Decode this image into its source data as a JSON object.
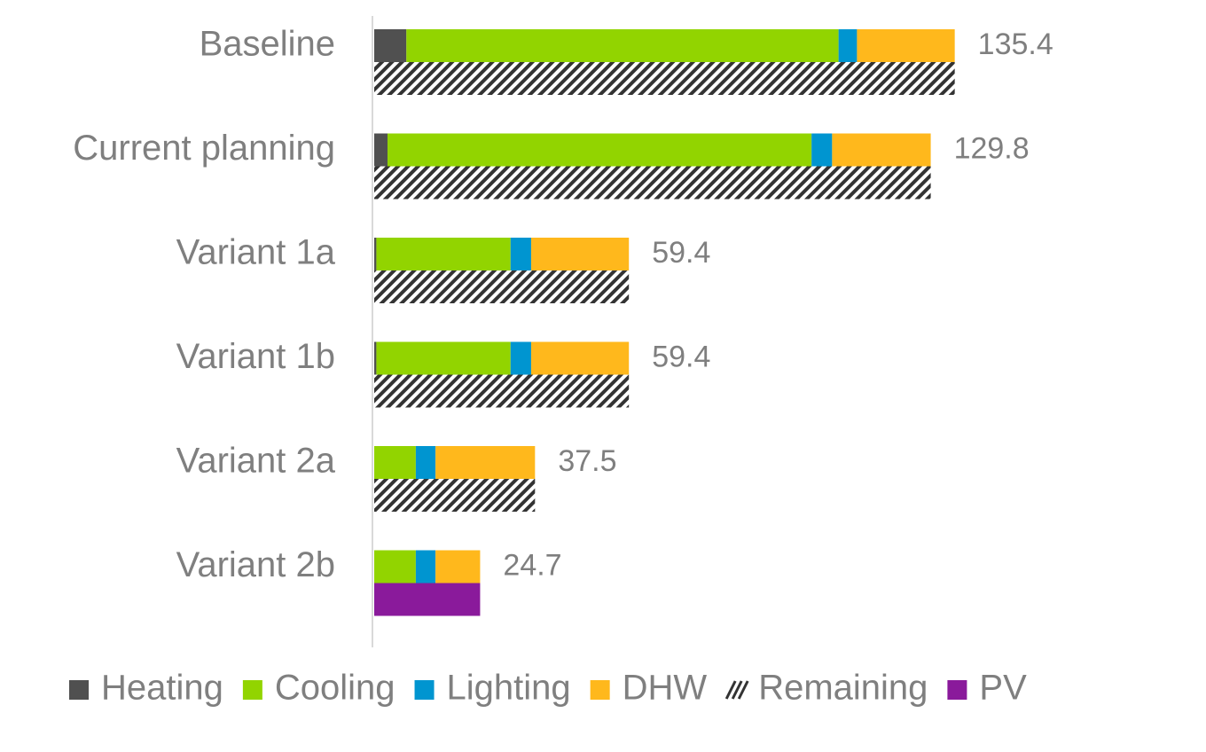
{
  "chart_data": {
    "type": "bar",
    "orientation": "horizontal",
    "categories": [
      "Baseline",
      "Current planning",
      "Variant 1a",
      "Variant 1b",
      "Variant 2a",
      "Variant 2b"
    ],
    "series": [
      {
        "name": "Heating",
        "color": "#505050",
        "values": [
          7.5,
          3.1,
          0.5,
          0.5,
          0,
          0
        ]
      },
      {
        "name": "Cooling",
        "color": "#92d400",
        "values": [
          100.8,
          98.9,
          31.3,
          31.3,
          9.7,
          9.7
        ]
      },
      {
        "name": "Lighting",
        "color": "#0095d0",
        "values": [
          4.3,
          4.8,
          4.8,
          4.8,
          4.6,
          4.6
        ]
      },
      {
        "name": "DHW",
        "color": "#ffb81c",
        "values": [
          22.8,
          23.0,
          22.8,
          22.8,
          23.2,
          10.4
        ]
      },
      {
        "name": "Remaining",
        "color": "#333333",
        "pattern": "hatch",
        "values": [
          135.4,
          129.8,
          59.4,
          59.4,
          37.5,
          null
        ]
      },
      {
        "name": "PV",
        "color": "#8a1a9b",
        "values": [
          null,
          null,
          null,
          null,
          null,
          24.7
        ]
      }
    ],
    "totals": [
      135.4,
      129.8,
      59.4,
      59.4,
      37.5,
      24.7
    ],
    "xlim": [
      0,
      194
    ]
  }
}
